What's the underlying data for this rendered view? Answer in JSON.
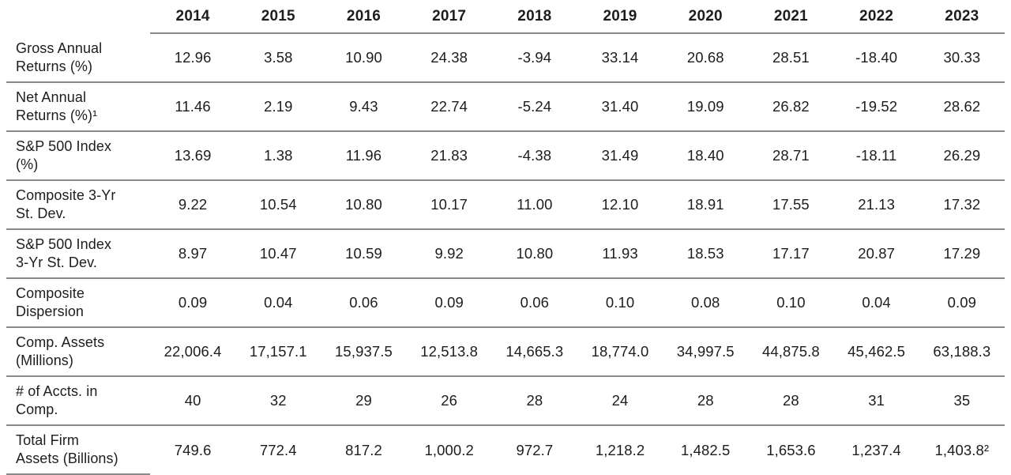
{
  "table": {
    "name": "composite-performance-table",
    "columns": [
      "2014",
      "2015",
      "2016",
      "2017",
      "2018",
      "2019",
      "2020",
      "2021",
      "2022",
      "2023"
    ],
    "rows": [
      {
        "label": "Gross Annual\nReturns (%)",
        "values": [
          "12.96",
          "3.58",
          "10.90",
          "24.38",
          "-3.94",
          "33.14",
          "20.68",
          "28.51",
          "-18.40",
          "30.33"
        ]
      },
      {
        "label": "Net Annual\nReturns (%)¹",
        "values": [
          "11.46",
          "2.19",
          "9.43",
          "22.74",
          "-5.24",
          "31.40",
          "19.09",
          "26.82",
          "-19.52",
          "28.62"
        ]
      },
      {
        "label": "S&P 500 Index\n(%)",
        "values": [
          "13.69",
          "1.38",
          "11.96",
          "21.83",
          "-4.38",
          "31.49",
          "18.40",
          "28.71",
          "-18.11",
          "26.29"
        ]
      },
      {
        "label": "Composite 3-Yr\nSt. Dev.",
        "values": [
          "9.22",
          "10.54",
          "10.80",
          "10.17",
          "11.00",
          "12.10",
          "18.91",
          "17.55",
          "21.13",
          "17.32"
        ]
      },
      {
        "label": "S&P 500 Index\n3-Yr St. Dev.",
        "values": [
          "8.97",
          "10.47",
          "10.59",
          "9.92",
          "10.80",
          "11.93",
          "18.53",
          "17.17",
          "20.87",
          "17.29"
        ]
      },
      {
        "label": "Composite\nDispersion",
        "values": [
          "0.09",
          "0.04",
          "0.06",
          "0.09",
          "0.06",
          "0.10",
          "0.08",
          "0.10",
          "0.04",
          "0.09"
        ]
      },
      {
        "label": "Comp. Assets\n(Millions)",
        "values": [
          "22,006.4",
          "17,157.1",
          "15,937.5",
          "12,513.8",
          "14,665.3",
          "18,774.0",
          "34,997.5",
          "44,875.8",
          "45,462.5",
          "63,188.3"
        ]
      },
      {
        "label": "# of Accts. in\nComp.",
        "values": [
          "40",
          "32",
          "29",
          "26",
          "28",
          "24",
          "28",
          "28",
          "31",
          "35"
        ]
      },
      {
        "label": "Total Firm\nAssets (Billions)",
        "values": [
          "749.6",
          "772.4",
          "817.2",
          "1,000.2",
          "972.7",
          "1,218.2",
          "1,482.5",
          "1,653.6",
          "1,237.4",
          "1,403.8²"
        ]
      }
    ]
  },
  "colors": {
    "text": "#1d1d1d",
    "line": "#8a8a8a",
    "background": "#ffffff"
  }
}
